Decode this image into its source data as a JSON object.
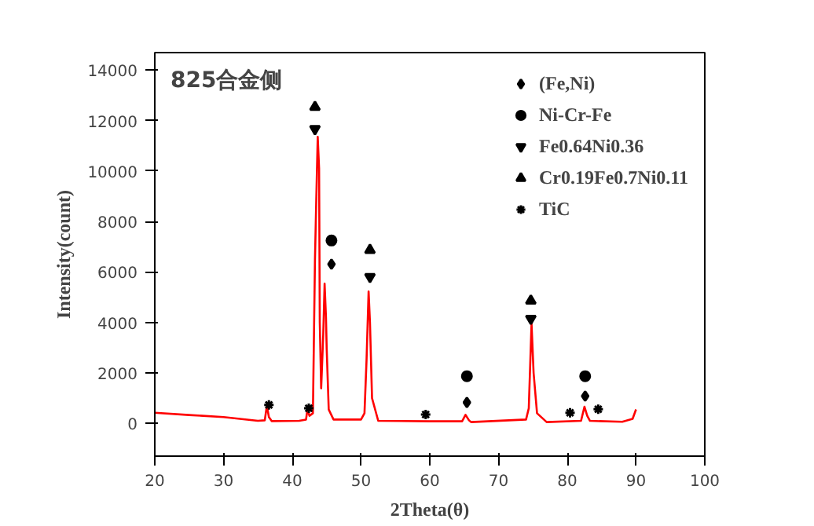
{
  "chart_data": {
    "type": "line",
    "xlabel": "2Theta(θ)",
    "ylabel": "Intensity(count)",
    "annotations": [
      "825合金侧"
    ],
    "xlim": [
      20,
      100
    ],
    "xticks": [
      20,
      30,
      40,
      50,
      60,
      70,
      80,
      90,
      100
    ],
    "ylim": [
      -1300,
      14700
    ],
    "yticks": [
      0,
      2000,
      4000,
      6000,
      8000,
      10000,
      12000,
      14000
    ],
    "grid": false,
    "legend": "top right",
    "series": [
      {
        "color": "#ff0000",
        "marker": "none",
        "x": [
          20,
          25,
          30,
          35,
          36.0,
          36.3,
          36.6,
          37,
          41,
          42.0,
          42.2,
          42.5,
          43,
          43.3,
          43.5,
          43.7,
          43.9,
          44.0,
          44.2,
          44.5,
          44.7,
          44.9,
          45.0,
          45.3,
          46,
          50,
          50.5,
          50.8,
          51.1,
          51.3,
          51.6,
          52.5,
          60,
          64.7,
          65.2,
          65.7,
          66,
          74,
          74.4,
          74.8,
          75.1,
          75.6,
          77,
          82,
          82.5,
          82.9,
          83.3,
          88,
          89.5,
          90
        ],
        "values": [
          420,
          330,
          250,
          100,
          120,
          700,
          250,
          90,
          100,
          150,
          550,
          300,
          400,
          6500,
          9000,
          11360,
          10100,
          4000,
          1390,
          3500,
          5540,
          4200,
          3000,
          550,
          150,
          150,
          400,
          2500,
          5230,
          4000,
          1000,
          100,
          80,
          80,
          340,
          120,
          50,
          150,
          600,
          3950,
          2000,
          400,
          50,
          100,
          660,
          300,
          100,
          60,
          180,
          550
        ]
      },
      {
        "type": "scatter",
        "name": "(Fe,Ni)",
        "color": "#000000",
        "marker": "diamond",
        "x": [
          45.7,
          65.4,
          82.6
        ],
        "values": [
          6310,
          830,
          1080
        ]
      },
      {
        "type": "scatter",
        "name": "Ni-Cr-Fe",
        "color": "#000000",
        "marker": "circle",
        "x": [
          45.7,
          65.4,
          82.6
        ],
        "values": [
          7250,
          1870,
          1870
        ]
      },
      {
        "type": "scatter",
        "name": "Fe0.64Ni0.36",
        "color": "#000000",
        "marker": "triangle_down",
        "x": [
          43.3,
          51.3,
          74.7
        ],
        "values": [
          11670,
          5810,
          4150
        ]
      },
      {
        "type": "scatter",
        "name": "Cr0.19Fe0.7Ni0.11",
        "color": "#000000",
        "marker": "triangle",
        "x": [
          43.3,
          51.3,
          74.7
        ],
        "values": [
          12540,
          6870,
          4860
        ]
      },
      {
        "type": "scatter",
        "name": "TiC",
        "color": "#000000",
        "marker": "cross",
        "x": [
          36.6,
          42.4,
          59.4,
          80.4,
          84.5
        ],
        "values": [
          730,
          600,
          350,
          420,
          560
        ]
      }
    ]
  }
}
